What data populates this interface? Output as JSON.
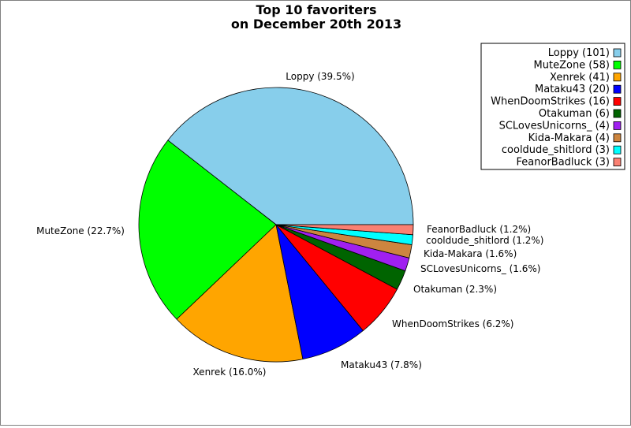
{
  "chart_data": {
    "type": "pie",
    "title_lines": [
      "Top 10 favoriters",
      "on December 20th 2013"
    ],
    "slices": [
      {
        "name": "Loppy",
        "value": 101,
        "label": "Loppy (39.5%)",
        "legend": "Loppy (101)",
        "color": "#87ceeb"
      },
      {
        "name": "MuteZone",
        "value": 58,
        "label": "MuteZone (22.7%)",
        "legend": "MuteZone (58)",
        "color": "#00ff00"
      },
      {
        "name": "Xenrek",
        "value": 41,
        "label": "Xenrek (16.0%)",
        "legend": "Xenrek (41)",
        "color": "#ffa500"
      },
      {
        "name": "Mataku43",
        "value": 20,
        "label": "Mataku43 (7.8%)",
        "legend": "Mataku43 (20)",
        "color": "#0000ff"
      },
      {
        "name": "WhenDoomStrikes",
        "value": 16,
        "label": "WhenDoomStrikes (6.2%)",
        "legend": "WhenDoomStrikes (16)",
        "color": "#ff0000"
      },
      {
        "name": "Otakuman",
        "value": 6,
        "label": "Otakuman (2.3%)",
        "legend": "Otakuman (6)",
        "color": "#006400"
      },
      {
        "name": "SCLovesUnicorns_",
        "value": 4,
        "label": "SCLovesUnicorns_ (1.6%)",
        "legend": "SCLovesUnicorns_ (4)",
        "color": "#a020f0"
      },
      {
        "name": "Kida-Makara",
        "value": 4,
        "label": "Kida-Makara (1.6%)",
        "legend": "Kida-Makara (4)",
        "color": "#cd853f"
      },
      {
        "name": "cooldude_shitlord",
        "value": 3,
        "label": "cooldude_shitlord (1.2%)",
        "legend": "cooldude_shitlord (3)",
        "color": "#00ffff"
      },
      {
        "name": "FeanorBadluck",
        "value": 3,
        "label": "FeanorBadluck (1.2%)",
        "legend": "FeanorBadluck (3)",
        "color": "#fa8072"
      }
    ],
    "start_direction": "east",
    "rotation": "clockwise",
    "legend_position": "top-right"
  }
}
